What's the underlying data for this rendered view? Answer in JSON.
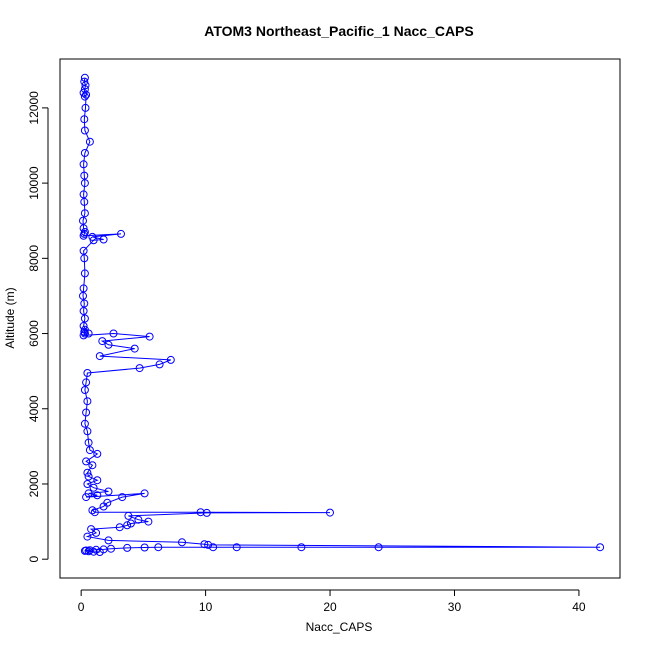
{
  "chart_data": {
    "type": "scatter",
    "title": "ATOM3 Northeast_Pacific_1 Nacc_CAPS",
    "xlabel": "Nacc_CAPS",
    "ylabel": "Altitude (m)",
    "xlim": [
      -1.7,
      43.3
    ],
    "ylim": [
      -500,
      13300
    ],
    "x_ticks": [
      0,
      10,
      20,
      30,
      40
    ],
    "y_ticks": [
      0,
      2000,
      4000,
      6000,
      8000,
      10000,
      12000
    ],
    "x_tick_labels": [
      "0",
      "10",
      "20",
      "30",
      "40"
    ],
    "y_tick_labels": [
      "0",
      "2000",
      "4000",
      "6000",
      "8000",
      "10000",
      "12000"
    ],
    "grid": false,
    "legend": "none",
    "color": "#0000ff",
    "marker": "open-circle",
    "line": true,
    "series": [
      {
        "x": [
          0.3,
          0.25,
          0.35,
          0.3,
          0.2,
          0.3,
          0.4,
          0.35,
          0.25,
          0.3,
          0.7,
          0.3,
          0.2,
          0.25,
          0.3,
          0.2,
          0.25,
          0.3,
          0.15,
          0.2,
          0.3,
          0.25,
          0.2,
          3.2,
          0.9,
          1.8,
          1.0,
          0.2,
          0.25,
          0.3,
          0.2,
          0.15,
          0.25,
          0.2,
          0.3,
          0.2,
          0.6,
          0.3,
          0.25,
          0.3,
          0.2,
          2.6,
          5.5,
          1.7,
          2.2,
          4.3,
          1.5,
          7.2,
          6.3,
          4.7,
          0.5,
          0.4,
          0.3,
          0.5,
          0.4,
          0.3,
          0.5,
          0.6,
          0.7,
          1.3,
          0.4,
          0.9,
          0.5,
          0.6,
          1.3,
          0.5,
          1.0,
          2.2,
          0.6,
          1.3,
          0.4,
          5.1,
          3.3,
          2.1,
          1.8,
          0.9,
          1.1,
          9.6,
          20.0,
          10.1,
          3.8,
          4.6,
          5.4,
          4.0,
          3.7,
          3.1,
          0.8,
          1.2,
          0.5,
          2.2,
          8.1,
          9.9,
          10.2,
          41.7,
          23.9,
          17.7,
          12.5,
          10.6,
          6.2,
          5.1,
          3.7,
          2.4,
          1.8,
          1.2,
          0.7,
          0.4,
          0.3,
          0.6,
          1.0,
          1.5
        ],
        "y": [
          12800,
          12700,
          12600,
          12500,
          12400,
          12300,
          12350,
          12000,
          11700,
          11400,
          11100,
          10800,
          10500,
          10200,
          10000,
          9700,
          9500,
          9200,
          9000,
          8800,
          8700,
          8650,
          8600,
          8650,
          8570,
          8500,
          8480,
          8200,
          8000,
          7600,
          7200,
          7000,
          6800,
          6600,
          6400,
          6200,
          6000,
          6100,
          6050,
          6000,
          5950,
          6000,
          5920,
          5800,
          5700,
          5600,
          5400,
          5300,
          5180,
          5080,
          4950,
          4700,
          4500,
          4200,
          3900,
          3600,
          3400,
          3100,
          2900,
          2800,
          2600,
          2500,
          2300,
          2200,
          2100,
          2000,
          1900,
          1800,
          1750,
          1700,
          1650,
          1750,
          1650,
          1500,
          1400,
          1300,
          1250,
          1250,
          1240,
          1230,
          1150,
          1050,
          1000,
          950,
          900,
          850,
          800,
          700,
          600,
          500,
          450,
          400,
          380,
          320,
          320,
          320,
          320,
          320,
          320,
          310,
          300,
          280,
          260,
          250,
          240,
          230,
          220,
          210,
          200,
          190
        ]
      }
    ]
  }
}
